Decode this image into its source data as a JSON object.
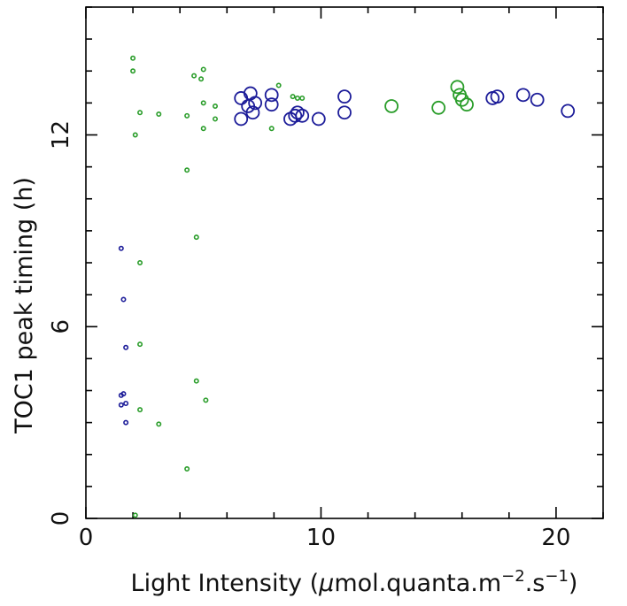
{
  "chart_data": {
    "type": "scatter",
    "xlabel": "Light Intensity (µmol.quanta.m⁻².s⁻¹)",
    "xlabel_parts": {
      "main": "Light Intensity (",
      "mu": "μ",
      "unit": "mol.quanta.m",
      "sup1": "−2",
      "mid": ".s",
      "sup2": "−1",
      "close": ")"
    },
    "ylabel": "TOC1 peak timing (h)",
    "xlim": [
      0,
      22
    ],
    "ylim": [
      0,
      16
    ],
    "x_ticks": [
      0,
      10,
      20
    ],
    "y_ticks": [
      0,
      6,
      12
    ],
    "x_tick_labels": [
      "0",
      "10",
      "20"
    ],
    "y_tick_labels": [
      "0",
      "6",
      "12"
    ],
    "grid": false,
    "legend": "none",
    "series": [
      {
        "color": "#2a9d2a",
        "points": [
          {
            "x": 2.0,
            "y": 14.4,
            "r": 2.2
          },
          {
            "x": 2.0,
            "y": 14.0,
            "r": 2.2
          },
          {
            "x": 2.1,
            "y": 12.0,
            "r": 2.2
          },
          {
            "x": 2.3,
            "y": 12.7,
            "r": 2.2
          },
          {
            "x": 3.1,
            "y": 12.65,
            "r": 2.2
          },
          {
            "x": 4.3,
            "y": 12.6,
            "r": 2.2
          },
          {
            "x": 4.6,
            "y": 13.85,
            "r": 2.2
          },
          {
            "x": 5.0,
            "y": 14.05,
            "r": 2.2
          },
          {
            "x": 4.9,
            "y": 13.75,
            "r": 2.2
          },
          {
            "x": 5.0,
            "y": 13.0,
            "r": 2.2
          },
          {
            "x": 5.5,
            "y": 12.9,
            "r": 2.2
          },
          {
            "x": 5.5,
            "y": 12.5,
            "r": 2.2
          },
          {
            "x": 5.0,
            "y": 12.2,
            "r": 2.2
          },
          {
            "x": 4.3,
            "y": 10.9,
            "r": 2.2
          },
          {
            "x": 4.7,
            "y": 8.8,
            "r": 2.2
          },
          {
            "x": 2.3,
            "y": 8.0,
            "r": 2.2
          },
          {
            "x": 2.3,
            "y": 5.45,
            "r": 2.2
          },
          {
            "x": 4.7,
            "y": 4.3,
            "r": 2.2
          },
          {
            "x": 5.1,
            "y": 3.7,
            "r": 2.2
          },
          {
            "x": 2.3,
            "y": 3.4,
            "r": 2.2
          },
          {
            "x": 3.1,
            "y": 2.95,
            "r": 2.2
          },
          {
            "x": 4.3,
            "y": 1.55,
            "r": 2.2
          },
          {
            "x": 2.1,
            "y": 0.1,
            "r": 2.2
          },
          {
            "x": 7.9,
            "y": 12.2,
            "r": 2.2
          },
          {
            "x": 8.2,
            "y": 13.55,
            "r": 2.2
          },
          {
            "x": 8.8,
            "y": 13.2,
            "r": 2.2
          },
          {
            "x": 9.0,
            "y": 13.15,
            "r": 2.2
          },
          {
            "x": 9.2,
            "y": 13.15,
            "r": 2.2
          },
          {
            "x": 13.0,
            "y": 12.9,
            "r": 7
          },
          {
            "x": 15.0,
            "y": 12.85,
            "r": 7
          },
          {
            "x": 15.8,
            "y": 13.5,
            "r": 7
          },
          {
            "x": 15.9,
            "y": 13.25,
            "r": 7
          },
          {
            "x": 16.0,
            "y": 13.1,
            "r": 7
          },
          {
            "x": 16.2,
            "y": 12.95,
            "r": 7
          }
        ]
      },
      {
        "color": "#1c1c99",
        "points": [
          {
            "x": 1.5,
            "y": 8.45,
            "r": 2.2
          },
          {
            "x": 1.6,
            "y": 6.85,
            "r": 2.2
          },
          {
            "x": 1.7,
            "y": 5.35,
            "r": 2.2
          },
          {
            "x": 1.5,
            "y": 3.85,
            "r": 2.2
          },
          {
            "x": 1.6,
            "y": 3.9,
            "r": 2.2
          },
          {
            "x": 1.5,
            "y": 3.55,
            "r": 2.2
          },
          {
            "x": 1.7,
            "y": 3.6,
            "r": 2.2
          },
          {
            "x": 1.7,
            "y": 3.0,
            "r": 2.2
          },
          {
            "x": 6.6,
            "y": 13.15,
            "r": 7
          },
          {
            "x": 6.6,
            "y": 12.5,
            "r": 7
          },
          {
            "x": 6.9,
            "y": 12.9,
            "r": 7
          },
          {
            "x": 7.0,
            "y": 13.3,
            "r": 7
          },
          {
            "x": 7.1,
            "y": 12.7,
            "r": 7
          },
          {
            "x": 7.2,
            "y": 13.0,
            "r": 7
          },
          {
            "x": 7.9,
            "y": 12.95,
            "r": 7
          },
          {
            "x": 7.9,
            "y": 13.25,
            "r": 7
          },
          {
            "x": 8.7,
            "y": 12.5,
            "r": 7
          },
          {
            "x": 8.9,
            "y": 12.6,
            "r": 7
          },
          {
            "x": 9.0,
            "y": 12.7,
            "r": 7
          },
          {
            "x": 9.2,
            "y": 12.6,
            "r": 7
          },
          {
            "x": 9.9,
            "y": 12.5,
            "r": 7
          },
          {
            "x": 11.0,
            "y": 12.7,
            "r": 7
          },
          {
            "x": 11.0,
            "y": 13.2,
            "r": 7
          },
          {
            "x": 17.3,
            "y": 13.15,
            "r": 7
          },
          {
            "x": 17.5,
            "y": 13.2,
            "r": 7
          },
          {
            "x": 18.6,
            "y": 13.25,
            "r": 7
          },
          {
            "x": 19.2,
            "y": 13.1,
            "r": 7
          },
          {
            "x": 20.5,
            "y": 12.75,
            "r": 7
          }
        ]
      }
    ]
  }
}
